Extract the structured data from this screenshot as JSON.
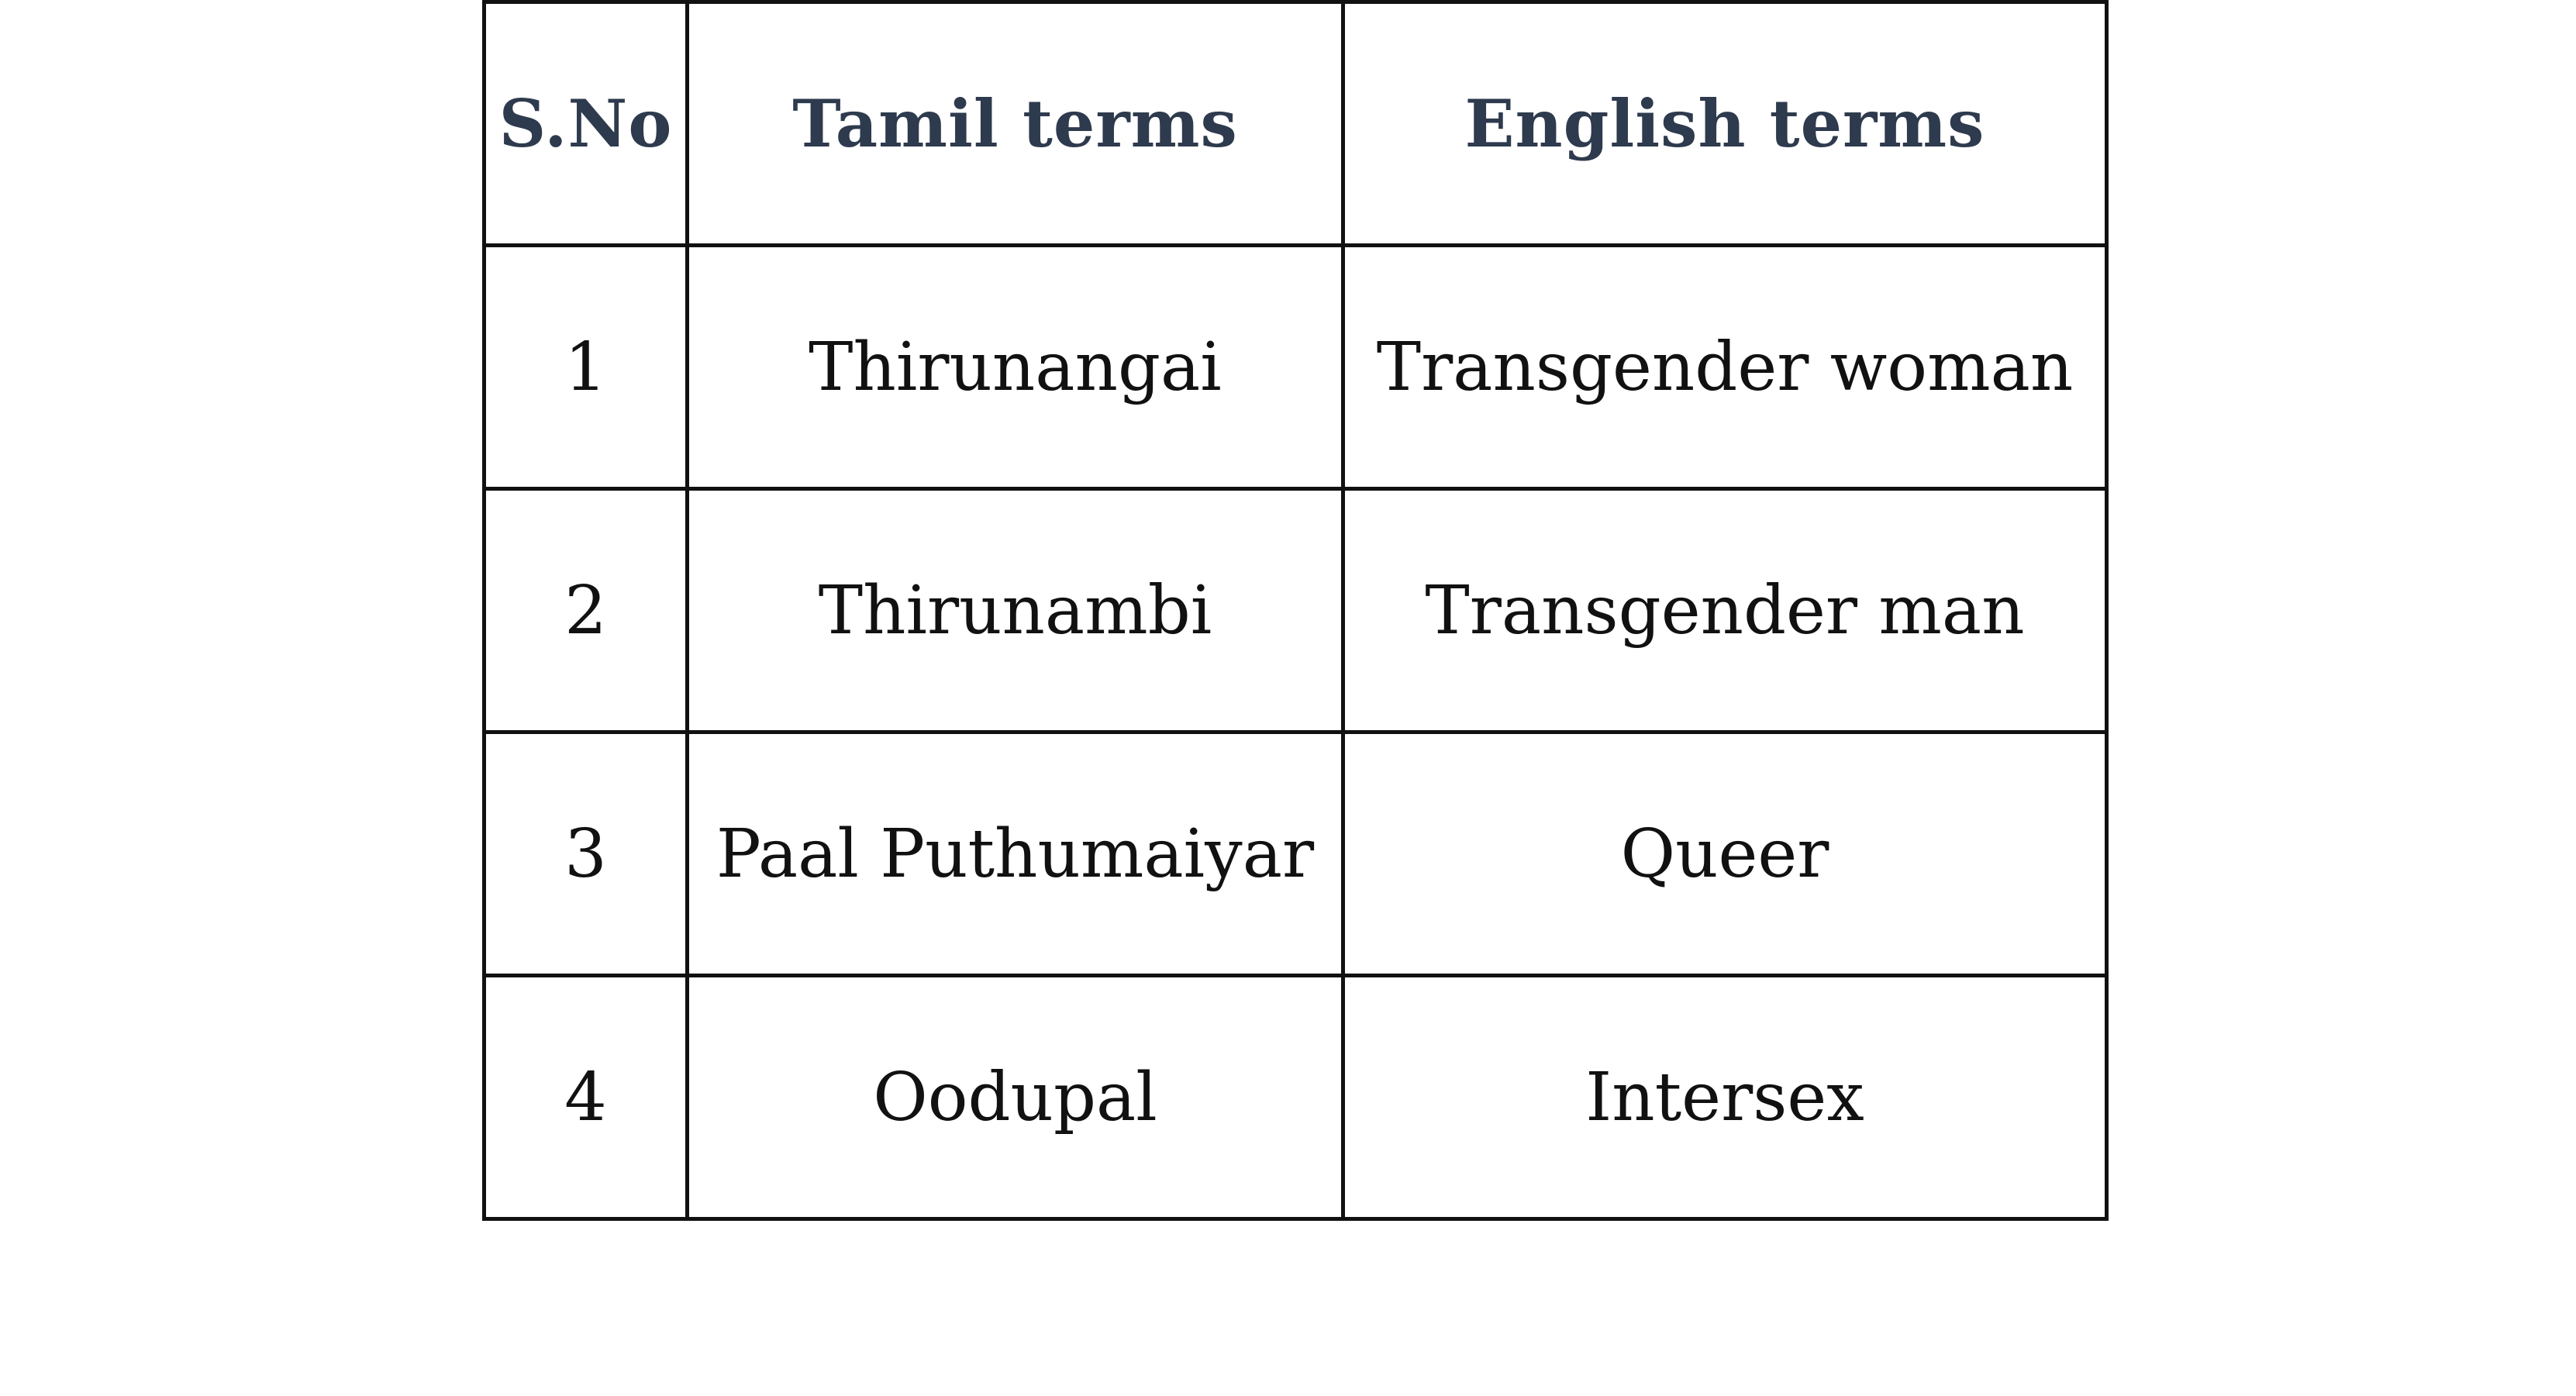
{
  "table": {
    "headers": [
      "S.No",
      "Tamil terms",
      "English terms"
    ],
    "rows": [
      [
        "1",
        "Thirunangai",
        "Transgender woman"
      ],
      [
        "2",
        "Thirunambi",
        "Transgender man"
      ],
      [
        "3",
        "Paal Puthumaiyar",
        "Queer"
      ],
      [
        "4",
        "Oodupal",
        "Intersex"
      ]
    ]
  }
}
